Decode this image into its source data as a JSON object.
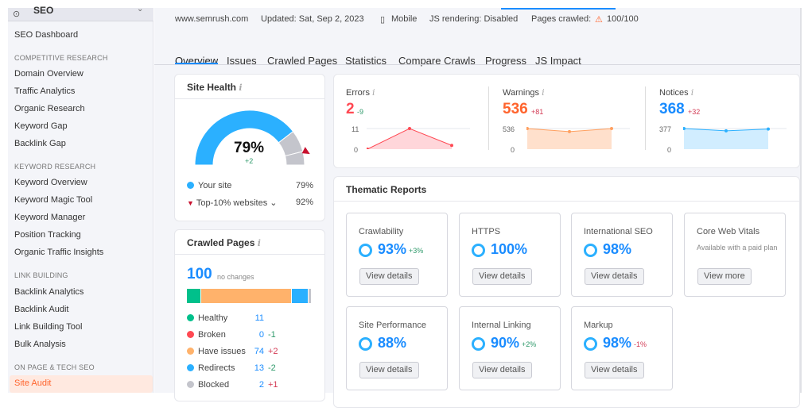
{
  "sidebar": {
    "header": "SEO",
    "items": {
      "dashboard": "SEO Dashboard",
      "sec1": "COMPETITIVE RESEARCH",
      "i1": "Domain Overview",
      "i2": "Traffic Analytics",
      "i3": "Organic Research",
      "i4": "Keyword Gap",
      "i5": "Backlink Gap",
      "sec2": "KEYWORD RESEARCH",
      "i6": "Keyword Overview",
      "i7": "Keyword Magic Tool",
      "i8": "Keyword Manager",
      "i9": "Position Tracking",
      "i10": "Organic Traffic Insights",
      "sec3": "LINK BUILDING",
      "i11": "Backlink Analytics",
      "i12": "Backlink Audit",
      "i13": "Link Building Tool",
      "i14": "Bulk Analysis",
      "sec4": "ON PAGE & TECH SEO",
      "active": "Site Audit"
    }
  },
  "info": {
    "domain": "www.semrush.com",
    "updated": "Updated: Sat, Sep 2, 2023",
    "device": "Mobile",
    "js": "JS rendering: Disabled",
    "pages_label": "Pages crawled:",
    "pages": "100/100"
  },
  "tabs": [
    "Overview",
    "Issues",
    "Crawled Pages",
    "Statistics",
    "Compare Crawls",
    "Progress",
    "JS Impact"
  ],
  "site_health": {
    "title": "Site Health",
    "value": "79%",
    "delta": "+2",
    "your_site_label": "Your site",
    "your_site": "79%",
    "top10_label": "Top-10% websites",
    "top10": "92%",
    "score": 79,
    "top10_score": 92
  },
  "crawled": {
    "title": "Crawled Pages",
    "total": "100",
    "note": "no changes",
    "rows": [
      {
        "label": "Healthy",
        "value": "11",
        "delta": "",
        "color": "#00c08b"
      },
      {
        "label": "Broken",
        "value": "0",
        "delta": "-1",
        "color": "#ff4953"
      },
      {
        "label": "Have issues",
        "value": "74",
        "delta": "+2",
        "color": "#ffb26b"
      },
      {
        "label": "Redirects",
        "value": "13",
        "delta": "-2",
        "color": "#2bb0ff"
      },
      {
        "label": "Blocked",
        "value": "2",
        "delta": "+1",
        "color": "#c4c5cc"
      }
    ]
  },
  "issues": [
    {
      "label": "Errors",
      "value": "2",
      "delta": "-9",
      "ymax": "11",
      "ymin": "0",
      "points": [
        0,
        11,
        2
      ],
      "color": "#ff4953"
    },
    {
      "label": "Warnings",
      "value": "536",
      "delta": "+81",
      "ymax": "536",
      "ymin": "0",
      "points": [
        536,
        455,
        536
      ],
      "color": "#ff642d"
    },
    {
      "label": "Notices",
      "value": "368",
      "delta": "+32",
      "ymax": "377",
      "ymin": "0",
      "points": [
        377,
        336,
        368
      ],
      "color": "#1a8cff"
    }
  ],
  "thematic": {
    "title": "Thematic Reports",
    "cards": [
      {
        "title": "Crawlability",
        "value": "93%",
        "delta": "+3%",
        "btn": "View details"
      },
      {
        "title": "HTTPS",
        "value": "100%",
        "delta": "",
        "btn": "View details"
      },
      {
        "title": "International SEO",
        "value": "98%",
        "delta": "",
        "btn": "View details"
      },
      {
        "title": "Core Web Vitals",
        "note": "Available with a paid plan",
        "btn": "View more"
      },
      {
        "title": "Site Performance",
        "value": "88%",
        "delta": "",
        "btn": "View details"
      },
      {
        "title": "Internal Linking",
        "value": "90%",
        "delta": "+2%",
        "btn": "View details"
      },
      {
        "title": "Markup",
        "value": "98%",
        "delta": "-1%",
        "btn": "View details"
      }
    ]
  }
}
